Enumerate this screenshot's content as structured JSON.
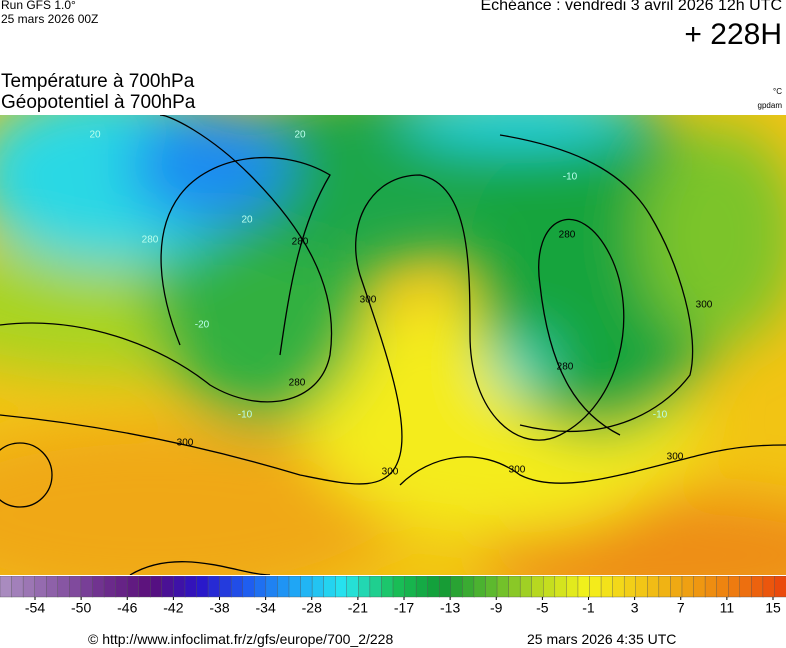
{
  "header": {
    "run": "Run GFS 1.0°",
    "run_date": "25 mars 2026 00Z",
    "valid": "Echéance : vendredi 3 avril 2026 12h UTC",
    "lead": "+ 228H",
    "title1": "Température à 700hPa",
    "title2": "Géopotentiel à 700hPa",
    "unit1": "°C",
    "unit2": "gpdam"
  },
  "map": {
    "contour_labels": [
      "20",
      "280",
      "20",
      "20",
      "-10",
      "280",
      "300",
      "280",
      "300",
      "280",
      "300",
      "300",
      "300",
      "-20",
      "-10",
      "-10",
      "280",
      "300"
    ]
  },
  "legend": {
    "ticks": [
      -54,
      -50,
      -46,
      -42,
      -38,
      -34,
      -28,
      -21,
      -17,
      -13,
      -9,
      -5,
      -1,
      3,
      7,
      11,
      15
    ],
    "colors": [
      "#a98bbf",
      "#8d5fa8",
      "#6e2f8e",
      "#5a0f7a",
      "#2a14c8",
      "#1f5df0",
      "#1fa8f5",
      "#27e6ee",
      "#1ac25a",
      "#129a36",
      "#5ab82e",
      "#b8d820",
      "#f4f21c",
      "#f2cb17",
      "#efa312",
      "#ee7d10",
      "#ea4a0c"
    ]
  },
  "footer": {
    "source": "© http://www.infoclimat.fr/z/gfs/europe/700_2/228",
    "generated": "25 mars 2026  4:35 UTC"
  }
}
